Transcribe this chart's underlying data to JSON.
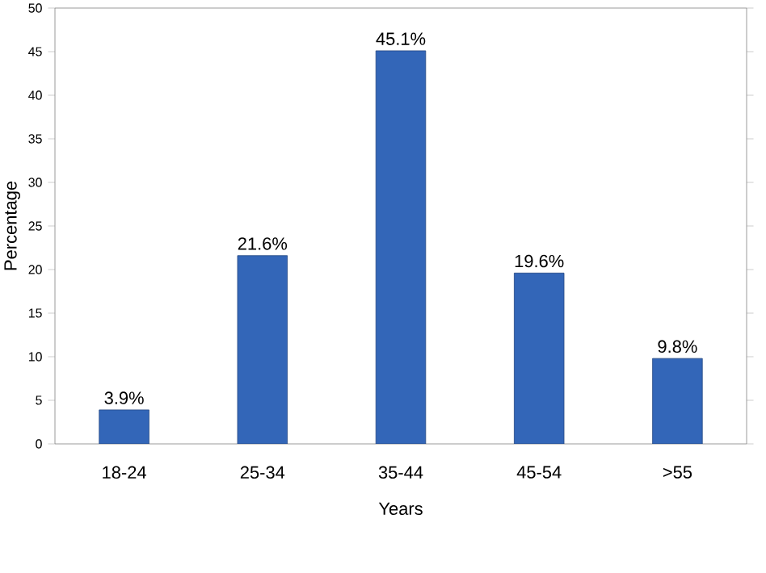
{
  "chart_data": {
    "type": "bar",
    "xlabel": "Years",
    "ylabel": "Percentage",
    "categories": [
      "18-24",
      "25-34",
      "35-44",
      "45-54",
      ">55"
    ],
    "values": [
      3.9,
      21.6,
      45.1,
      19.6,
      9.8
    ],
    "value_labels": [
      "3.9%",
      "21.6%",
      "45.1%",
      "19.6%",
      "9.8%"
    ],
    "color": "#3366b8",
    "ylim": [
      0,
      50
    ],
    "yticks": [
      0,
      5,
      10,
      15,
      20,
      25,
      30,
      35,
      40,
      45,
      50
    ],
    "grid": false
  }
}
